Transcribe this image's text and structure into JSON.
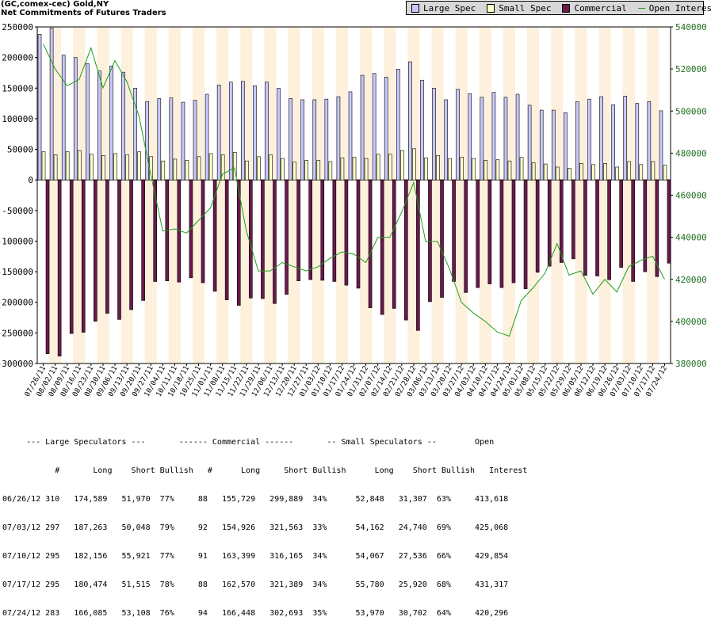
{
  "header": {
    "line1": "(GC,comex-cec) Gold,NY",
    "line2": "Net Commitments of Futures Traders"
  },
  "legend": [
    {
      "label": "Large Spec",
      "color": "#c8c8ff",
      "kind": "box"
    },
    {
      "label": "Small Spec",
      "color": "#ffffcc",
      "kind": "box"
    },
    {
      "label": "Commercial",
      "color": "#6b1a4b",
      "kind": "box"
    },
    {
      "label": "Open Interest",
      "color": "#1e9e1e",
      "kind": "line"
    }
  ],
  "chart_data": {
    "type": "bar",
    "left_axis": {
      "ticks": [
        "250000",
        "200000",
        "150000",
        "100000",
        "50000",
        "0",
        "-50000",
        "-100000",
        "-150000",
        "-200000",
        "-250000",
        "-300000"
      ],
      "ylim": [
        -300000,
        250000
      ]
    },
    "right_axis": {
      "ticks": [
        "540000",
        "520000",
        "500000",
        "480000",
        "460000",
        "440000",
        "420000",
        "400000",
        "380000"
      ],
      "ylim": [
        380000,
        540000
      ]
    },
    "categories": [
      "07/26/11",
      "08/02/11",
      "08/09/11",
      "08/16/11",
      "08/23/11",
      "08/30/11",
      "09/06/11",
      "09/13/11",
      "09/20/11",
      "09/27/11",
      "10/04/11",
      "10/11/11",
      "10/18/11",
      "10/25/11",
      "11/01/11",
      "11/08/11",
      "11/15/11",
      "11/22/11",
      "11/29/11",
      "12/06/11",
      "12/13/11",
      "12/20/11",
      "12/27/11",
      "01/03/12",
      "01/10/12",
      "01/17/12",
      "01/24/12",
      "01/31/12",
      "02/07/12",
      "02/14/12",
      "02/21/12",
      "02/28/12",
      "03/06/12",
      "03/13/12",
      "03/20/12",
      "03/27/12",
      "04/03/12",
      "04/10/12",
      "04/17/12",
      "04/24/12",
      "05/01/12",
      "05/08/12",
      "05/15/12",
      "05/22/12",
      "05/29/12",
      "06/05/12",
      "06/12/12",
      "06/19/12",
      "06/26/12",
      "07/03/12",
      "07/10/12",
      "07/17/12",
      "07/24/12"
    ],
    "series": [
      {
        "name": "Large Spec",
        "color": "#c8c8ff",
        "values": [
          238000,
          248000,
          204000,
          200000,
          190000,
          178000,
          186000,
          176000,
          150000,
          128000,
          133000,
          134000,
          127000,
          130000,
          140000,
          155000,
          160000,
          161000,
          154000,
          160000,
          150000,
          133000,
          131000,
          131000,
          132000,
          136000,
          144000,
          171000,
          174000,
          168000,
          181000,
          193000,
          163000,
          150000,
          131000,
          148000,
          141000,
          135000,
          143000,
          135000,
          140000,
          122000,
          114000,
          114000,
          110000,
          128000,
          132000,
          136000,
          123000,
          137000,
          125000,
          128000,
          113000
        ]
      },
      {
        "name": "Small Spec",
        "color": "#ffffcc",
        "values": [
          46000,
          41000,
          46000,
          48000,
          42000,
          40000,
          43000,
          41000,
          46000,
          38000,
          31000,
          34000,
          32000,
          38000,
          43000,
          41000,
          45000,
          31000,
          38000,
          41000,
          35000,
          29000,
          32000,
          32000,
          30000,
          36000,
          37000,
          35000,
          42000,
          42000,
          48000,
          51000,
          36000,
          40000,
          35000,
          37000,
          35000,
          32000,
          33000,
          31000,
          37000,
          28000,
          26000,
          21000,
          19000,
          27000,
          25000,
          27000,
          21000,
          30000,
          25000,
          30000,
          24000
        ]
      },
      {
        "name": "Commercial",
        "color": "#6b1a4b",
        "values": [
          -284000,
          -288000,
          -251000,
          -249000,
          -231000,
          -218000,
          -228000,
          -212000,
          -197000,
          -166000,
          -165000,
          -167000,
          -160000,
          -168000,
          -182000,
          -196000,
          -205000,
          -193000,
          -194000,
          -202000,
          -187000,
          -165000,
          -163000,
          -164000,
          -166000,
          -172000,
          -177000,
          -209000,
          -220000,
          -210000,
          -229000,
          -246000,
          -199000,
          -192000,
          -166000,
          -184000,
          -176000,
          -170000,
          -176000,
          -168000,
          -178000,
          -151000,
          -141000,
          -135000,
          -129000,
          -156000,
          -157000,
          -163000,
          -143000,
          -166000,
          -150000,
          -158000,
          -136000
        ]
      },
      {
        "name": "Open Interest",
        "color": "#1e9e1e",
        "values": [
          532000,
          520000,
          512000,
          515000,
          530000,
          511000,
          524000,
          514000,
          498000,
          470000,
          443000,
          444000,
          442000,
          448000,
          454000,
          470000,
          473000,
          443000,
          424000,
          424000,
          428000,
          426000,
          424000,
          426000,
          430000,
          433000,
          432000,
          428000,
          440000,
          440000,
          452000,
          466000,
          438000,
          438000,
          425000,
          409000,
          404000,
          400000,
          395000,
          393000,
          410000,
          416000,
          423000,
          437000,
          422000,
          424000,
          413000,
          420000,
          414000,
          426000,
          429000,
          431000,
          420000
        ]
      }
    ]
  },
  "table": {
    "group_header": "     --- Large Speculators ---       ------ Commercial ------       -- Small Speculators --        Open",
    "col_header": "           #       Long    Short Bullish   #      Long     Short Bullish      Long    Short Bullish   Interest",
    "rows": [
      "06/26/12 310   174,589   51,970  77%     88   155,729   299,889  34%      52,848   31,307  63%     413,618",
      "07/03/12 297   187,263   50,048  79%     92   154,926   321,563  33%      54,162   24,740  69%     425,068",
      "07/10/12 295   182,156   55,921  77%     91   163,399   316,165  34%      54,067   27,536  66%     429,854",
      "07/17/12 295   180,474   51,515  78%     88   162,570   321,389  34%      55,780   25,920  68%     431,317",
      "07/24/12 283   166,085   53,108  76%     94   166,448   302,693  35%      53,970   30,702  64%     420,296"
    ]
  }
}
